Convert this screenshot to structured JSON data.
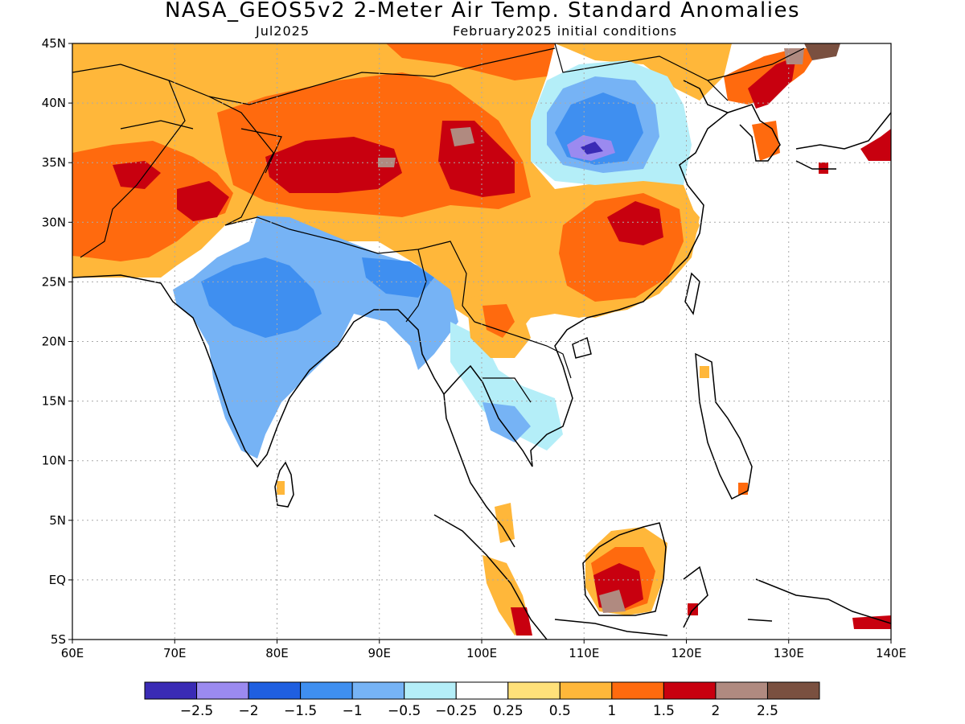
{
  "title": "NASA_GEOS5v2 2-Meter Air Temp. Standard Anomalies",
  "subtitle_left": "Jul2025",
  "subtitle_right": "February2025 initial conditions",
  "map": {
    "lon_range": [
      60,
      140
    ],
    "lat_range": [
      -5,
      45
    ],
    "lat_ticks": [
      {
        "value": 45,
        "label": "45N"
      },
      {
        "value": 40,
        "label": "40N"
      },
      {
        "value": 35,
        "label": "35N"
      },
      {
        "value": 30,
        "label": "30N"
      },
      {
        "value": 25,
        "label": "25N"
      },
      {
        "value": 20,
        "label": "20N"
      },
      {
        "value": 15,
        "label": "15N"
      },
      {
        "value": 10,
        "label": "10N"
      },
      {
        "value": 5,
        "label": "5N"
      },
      {
        "value": 0,
        "label": "EQ"
      },
      {
        "value": -5,
        "label": "5S"
      }
    ],
    "lon_ticks": [
      {
        "value": 60,
        "label": "60E"
      },
      {
        "value": 70,
        "label": "70E"
      },
      {
        "value": 80,
        "label": "80E"
      },
      {
        "value": 90,
        "label": "90E"
      },
      {
        "value": 100,
        "label": "100E"
      },
      {
        "value": 110,
        "label": "110E"
      },
      {
        "value": 120,
        "label": "120E"
      },
      {
        "value": 130,
        "label": "130E"
      },
      {
        "value": 140,
        "label": "140E"
      }
    ],
    "gridlines": "dotted"
  },
  "colorbar": {
    "colors": [
      "#3a2bb5",
      "#9b8af0",
      "#1f5fe0",
      "#3f8ff0",
      "#76b3f5",
      "#b4eef8",
      "#ffffff",
      "#ffe17a",
      "#ffb73a",
      "#ff6a0e",
      "#c8000f",
      "#b08a80",
      "#7a5040"
    ],
    "labels": [
      "-2.5",
      "-2",
      "-1.5",
      "-1",
      "-0.5",
      "-0.25",
      "0.25",
      "0.5",
      "1",
      "1.5",
      "2",
      "2.5"
    ]
  },
  "anomaly_regions": [
    {
      "name": "central asia warm",
      "color": "#ffb73a"
    },
    {
      "name": "tibet warm",
      "color": "#ff6a0e"
    },
    {
      "name": "tibet strong warm",
      "color": "#c8000f"
    },
    {
      "name": "india cool",
      "color": "#76b3f5"
    },
    {
      "name": "north china cool",
      "color": "#3f8ff0"
    },
    {
      "name": "south china warm",
      "color": "#ff6a0e"
    },
    {
      "name": "borneo warm",
      "color": "#c8000f"
    },
    {
      "name": "korea warm",
      "color": "#c8000f"
    }
  ]
}
